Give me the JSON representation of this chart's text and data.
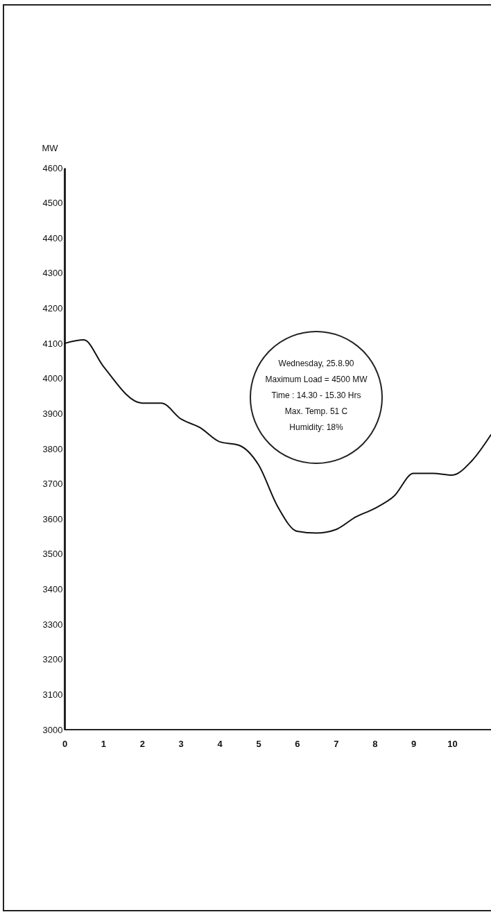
{
  "chart_data": {
    "type": "line",
    "ylabel": "MW",
    "annotations": [
      "Wednesday, 25.8.90",
      "Maximum Load = 4500 MW",
      "Time : 14.30 - 15.30 Hrs",
      "Max. Temp. 51 C",
      "Humidity: 18%"
    ],
    "x": [
      0,
      0.5,
      1,
      2,
      2.5,
      3,
      3.5,
      4,
      4.5,
      5,
      5.5,
      6,
      6.5,
      7,
      7.5,
      8,
      8.5,
      9,
      9.5,
      10,
      10.5,
      11
    ],
    "values": [
      4100,
      4110,
      4035,
      3930,
      3930,
      3885,
      3860,
      3820,
      3810,
      3755,
      3635,
      3565,
      3560,
      3570,
      3605,
      3630,
      3665,
      3730,
      3730,
      3725,
      3765,
      3840
    ],
    "color": "#111111",
    "xlim": [
      0,
      11
    ],
    "ylim": [
      3000,
      4600
    ],
    "xticks": [
      0,
      1,
      2,
      3,
      4,
      5,
      6,
      7,
      8,
      9,
      10
    ],
    "yticks": [
      3000,
      3100,
      3200,
      3300,
      3400,
      3500,
      3600,
      3700,
      3800,
      3900,
      4000,
      4100,
      4200,
      4300,
      4400,
      4500,
      4600
    ]
  }
}
